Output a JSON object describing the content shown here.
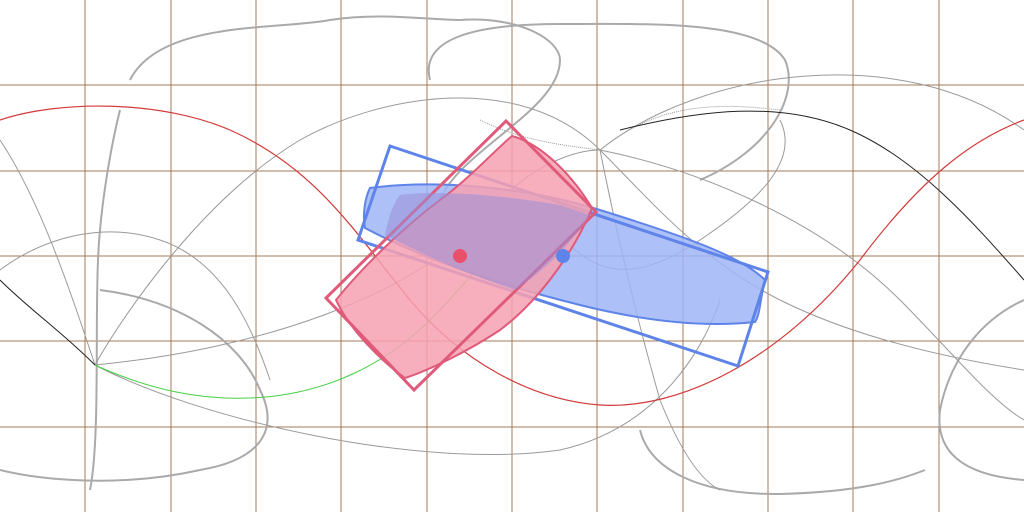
{
  "colors": {
    "background": "#ffffff",
    "grid": "#9c6a47",
    "grey_curve": "#a8a8a8",
    "grey_curve_thin": "#9a9a9a",
    "black_curve": "#222222",
    "red_curve": "#d23a3a",
    "green_curve": "#46d046",
    "pink_fill": "#f7a1b1",
    "pink_stroke": "#e05a7a",
    "pink_dot": "#e8506c",
    "blue_fill": "#9fb5f7",
    "blue_stroke": "#5f84e9",
    "blue_dot": "#5f84e9"
  },
  "elements": {
    "grid": "equirectangular-grid",
    "pink_shape": "projected-box-pink",
    "blue_shape": "projected-box-blue",
    "pink_marker": "pink-center-dot",
    "blue_marker": "blue-center-dot"
  }
}
